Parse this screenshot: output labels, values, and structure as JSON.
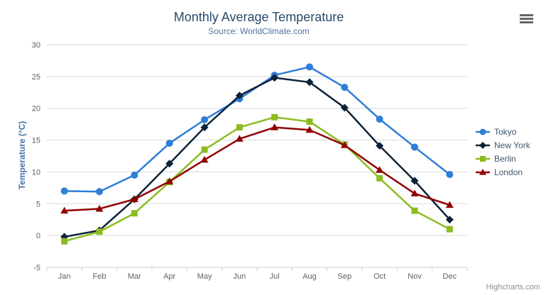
{
  "chart": {
    "title": "Monthly Average Temperature",
    "subtitle": "Source: WorldClimate.com",
    "credits_label": "Highcharts.com",
    "context_menu_icon": "hamburger-icon"
  },
  "chart_data": {
    "type": "line",
    "title": "Monthly Average Temperature",
    "subtitle": "Source: WorldClimate.com",
    "categories": [
      "Jan",
      "Feb",
      "Mar",
      "Apr",
      "May",
      "Jun",
      "Jul",
      "Aug",
      "Sep",
      "Oct",
      "Nov",
      "Dec"
    ],
    "xlabel": "",
    "ylabel": "Temperature (°C)",
    "ylim": [
      -5,
      30
    ],
    "yticks": [
      -5,
      0,
      5,
      10,
      15,
      20,
      25,
      30
    ],
    "grid": true,
    "legend_position": "right",
    "colors": {
      "grid": "#D8D8D8",
      "axis_line": "#C0D0E0",
      "axis_label": "#606060",
      "axis_title": "#4572A7",
      "title": "#274b6d",
      "subtitle": "#4d759e",
      "legend_text": "#3E576F"
    },
    "series": [
      {
        "name": "Tokyo",
        "color": "#2f7ed8",
        "marker": "circle",
        "values": [
          7.0,
          6.9,
          9.5,
          14.5,
          18.2,
          21.5,
          25.2,
          26.5,
          23.3,
          18.3,
          13.9,
          9.6
        ]
      },
      {
        "name": "New York",
        "color": "#0d233a",
        "marker": "diamond",
        "values": [
          -0.2,
          0.8,
          5.7,
          11.3,
          17.0,
          22.0,
          24.8,
          24.1,
          20.1,
          14.1,
          8.6,
          2.5
        ]
      },
      {
        "name": "Berlin",
        "color": "#8bbc21",
        "marker": "square",
        "values": [
          -0.9,
          0.6,
          3.5,
          8.4,
          13.5,
          17.0,
          18.6,
          17.9,
          14.3,
          9.0,
          3.9,
          1.0
        ]
      },
      {
        "name": "London",
        "color": "#910000",
        "marker": "triangle",
        "values": [
          3.9,
          4.2,
          5.7,
          8.5,
          11.9,
          15.2,
          17.0,
          16.6,
          14.2,
          10.3,
          6.6,
          4.8
        ]
      }
    ]
  }
}
